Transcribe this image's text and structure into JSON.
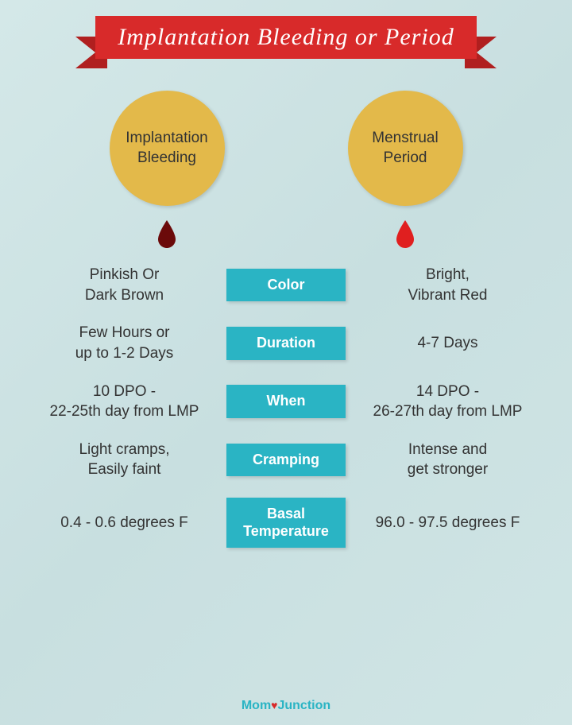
{
  "title": "Implantation Bleeding or Period",
  "colors": {
    "banner_bg": "#d82a2a",
    "banner_fold": "#b01f1f",
    "circle_fill": "#e3b94a",
    "category_bg": "#2ab4c4",
    "drop_left": "#6b0a0a",
    "drop_right": "#e01f1f",
    "text": "#333333",
    "footer_brand": "#2ab4c4"
  },
  "left_header": "Implantation\nBleeding",
  "right_header": "Menstrual\nPeriod",
  "rows": [
    {
      "category": "Color",
      "left": "Pinkish Or\nDark Brown",
      "right": "Bright,\nVibrant Red"
    },
    {
      "category": "Duration",
      "left": "Few Hours or\nup to 1-2 Days",
      "right": "4-7 Days"
    },
    {
      "category": "When",
      "left": "10 DPO -\n22-25th day from LMP",
      "right": "14 DPO -\n26-27th day from LMP"
    },
    {
      "category": "Cramping",
      "left": "Light cramps,\nEasily faint",
      "right": "Intense and\nget stronger"
    },
    {
      "category": "Basal\nTemperature",
      "left": "0.4 - 0.6 degrees F",
      "right": "96.0 - 97.5 degrees F"
    }
  ],
  "footer": {
    "brand_left": "Mom",
    "brand_right": "Junction"
  },
  "fonts": {
    "title_size": 30,
    "circle_size": 19,
    "value_size": 19,
    "category_size": 18
  }
}
